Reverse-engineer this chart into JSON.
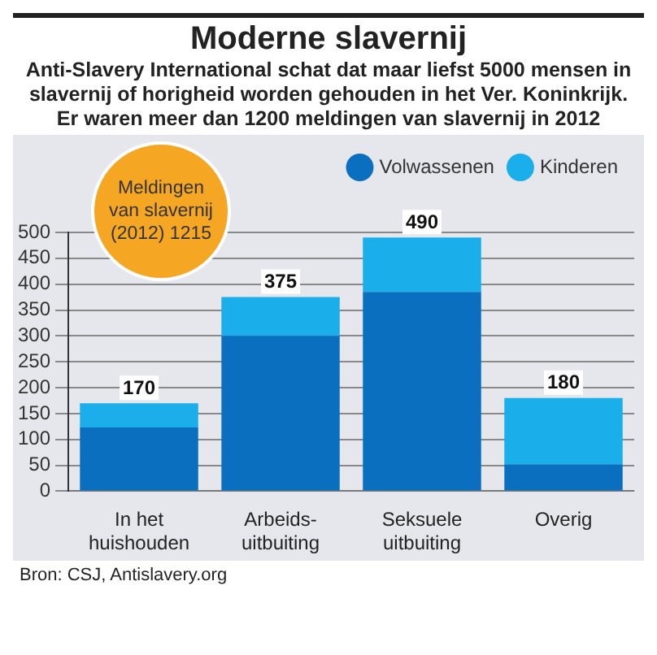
{
  "chart_data": {
    "type": "bar",
    "title": "Moderne slavernij",
    "subtitle": "Anti-Slavery International schat dat maar liefst 5000 mensen in slavernij of horigheid worden gehouden in het Ver. Koninkrijk. Er waren meer dan 1200 meldingen van slavernij in 2012",
    "categories": [
      "In het huishouden",
      "Arbeids-uitbuiting",
      "Seksuele uitbuiting",
      "Overig"
    ],
    "series": [
      {
        "name": "Volwassenen",
        "color": "#0b6fbf",
        "values": [
          123,
          300,
          385,
          52
        ]
      },
      {
        "name": "Kinderen",
        "color": "#1aaeea",
        "values": [
          47,
          75,
          105,
          128
        ]
      }
    ],
    "stacked": true,
    "totals": [
      "170",
      "375",
      "490",
      "180"
    ],
    "ylim": [
      0,
      500
    ],
    "yticks": [
      0,
      50,
      100,
      150,
      200,
      250,
      300,
      350,
      400,
      450,
      500
    ],
    "grid": "y",
    "legend": "top right",
    "annotations": [
      "Meldingen van slavernij (2012) 1215",
      "Bron: CSJ, Antislavery.org"
    ]
  }
}
